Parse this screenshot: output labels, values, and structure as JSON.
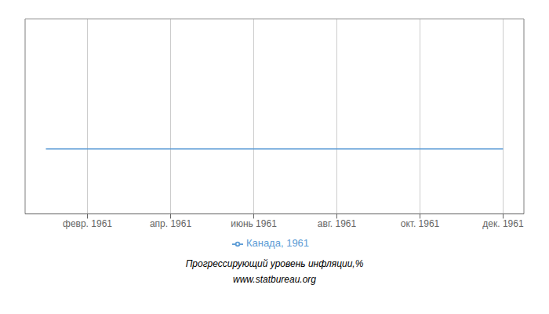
{
  "chart_data": {
    "type": "line",
    "subtitle": [
      "Прогрессирующий уровень инфляции,%",
      "www.statbureau.org"
    ],
    "x": [
      1,
      2,
      3,
      4,
      5,
      6,
      7,
      8,
      9,
      10,
      11,
      12
    ],
    "series": [
      {
        "name": "Канада, 1961",
        "color": "#5b9bd5",
        "values": [
          0,
          0,
          0,
          0,
          0,
          0,
          0,
          0,
          0,
          0,
          0,
          0
        ]
      }
    ],
    "xlim": [
      0.5,
      12.5
    ],
    "xticks": [
      {
        "value": 2,
        "label": "февр. 1961"
      },
      {
        "value": 4,
        "label": "апр. 1961"
      },
      {
        "value": 6,
        "label": "июнь 1961"
      },
      {
        "value": 8,
        "label": "авг. 1961"
      },
      {
        "value": 10,
        "label": "окт. 1961"
      },
      {
        "value": 12,
        "label": "дек. 1961"
      }
    ],
    "ylim": [
      -0.5,
      1.0
    ],
    "tick_labels": "x",
    "grid": true,
    "legend": "bottom"
  }
}
